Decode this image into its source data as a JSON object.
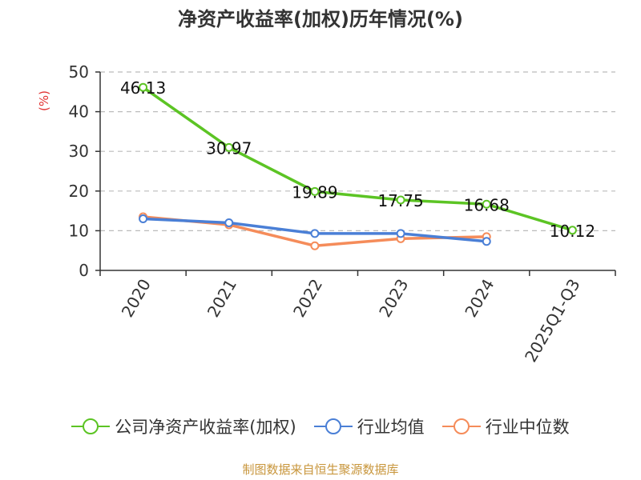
{
  "chart_data": {
    "type": "line",
    "title": "净资产收益率(加权)历年情况(%)",
    "ylabel": "(%)",
    "xlabel": "",
    "categories": [
      "2020",
      "2021",
      "2022",
      "2023",
      "2024",
      "2025Q1-Q3"
    ],
    "ylim": [
      0,
      50
    ],
    "yticks": [
      0,
      10,
      20,
      30,
      40,
      50
    ],
    "grid": true,
    "legend_position": "bottom",
    "series": [
      {
        "name": "公司净资产收益率(加权)",
        "color": "#5cc424",
        "values": [
          46.13,
          30.97,
          19.89,
          17.75,
          16.68,
          10.12
        ],
        "labels": [
          "46.13",
          "30.97",
          "19.89",
          "17.75",
          "16.68",
          "10.12"
        ]
      },
      {
        "name": "行业均值",
        "color": "#4a7fd6",
        "values": [
          13.0,
          12.0,
          9.3,
          9.3,
          7.3,
          null
        ]
      },
      {
        "name": "行业中位数",
        "color": "#f58c5a",
        "values": [
          13.5,
          11.5,
          6.2,
          8.0,
          8.5,
          null
        ]
      }
    ]
  },
  "source": "制图数据来自恒生聚源数据库",
  "colors": {
    "axis": "#333333",
    "grid": "#bbbbbb",
    "ylabel": "#e03030"
  }
}
